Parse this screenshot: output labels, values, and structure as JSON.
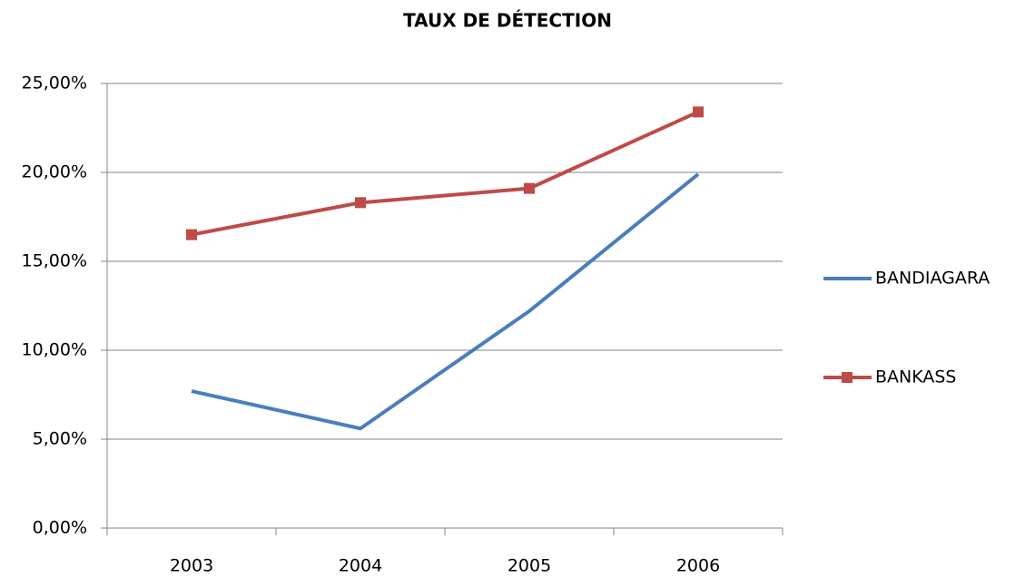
{
  "chart_data": {
    "type": "line",
    "title": "TAUX DE DÉTECTION",
    "categories": [
      "2003",
      "2004",
      "2005",
      "2006"
    ],
    "series": [
      {
        "name": "BANDIAGARA",
        "color": "#4a7ebb",
        "marker": "none",
        "values": [
          7.7,
          5.6,
          12.2,
          19.9
        ]
      },
      {
        "name": "BANKASS",
        "color": "#be4b48",
        "marker": "square",
        "values": [
          16.5,
          18.3,
          19.1,
          23.4
        ]
      }
    ],
    "ylim": [
      0,
      25
    ],
    "yticks": [
      {
        "value": 0,
        "label": "0,00%"
      },
      {
        "value": 5,
        "label": "5,00%"
      },
      {
        "value": 10,
        "label": "10,00%"
      },
      {
        "value": 15,
        "label": "15,00%"
      },
      {
        "value": 20,
        "label": "20,00%"
      },
      {
        "value": 25,
        "label": "25,00%"
      }
    ],
    "grid": true,
    "legend": "right"
  }
}
